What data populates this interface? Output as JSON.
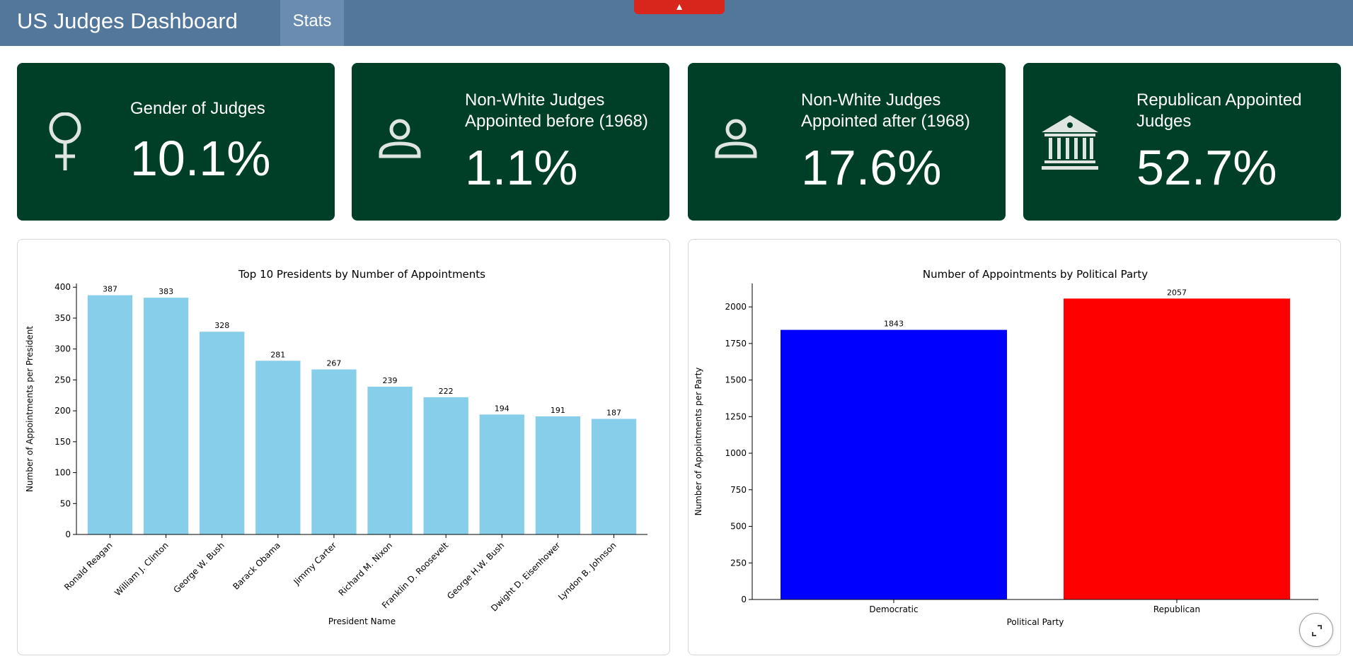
{
  "header": {
    "title": "US Judges Dashboard",
    "tab": "Stats",
    "badge_icon": "flame-icon"
  },
  "cards": [
    {
      "label": "Gender of Judges",
      "value": "10.1%",
      "icon": "female-icon"
    },
    {
      "label": "Non-White Judges Appointed before (1968)",
      "value": "1.1%",
      "icon": "person-icon"
    },
    {
      "label": "Non-White Judges Appointed after (1968)",
      "value": "17.6%",
      "icon": "person-icon"
    },
    {
      "label": "Republican Appointed Judges",
      "value": "52.7%",
      "icon": "bank-icon"
    }
  ],
  "chart_data": [
    {
      "type": "bar",
      "title": "Top 10 Presidents by Number of Appointments",
      "xlabel": "President Name",
      "ylabel": "Number of Appointments per President",
      "categories": [
        "Ronald Reagan",
        "William J. Clinton",
        "George W. Bush",
        "Barack Obama",
        "Jimmy Carter",
        "Richard M. Nixon",
        "Franklin D. Roosevelt",
        "George H.W. Bush",
        "Dwight D. Eisenhower",
        "Lyndon B. Johnson"
      ],
      "values": [
        387,
        383,
        328,
        281,
        267,
        239,
        222,
        194,
        191,
        187
      ],
      "ylim": [
        0,
        406
      ],
      "yticks": [
        0,
        50,
        100,
        150,
        200,
        250,
        300,
        350,
        400
      ],
      "color": "#87ceeb"
    },
    {
      "type": "bar",
      "title": "Number of Appointments by Political Party",
      "xlabel": "Political Party",
      "ylabel": "Number of Appointments per Party",
      "categories": [
        "Democratic",
        "Republican"
      ],
      "values": [
        1843,
        2057
      ],
      "ylim": [
        0,
        2160
      ],
      "yticks": [
        0,
        250,
        500,
        750,
        1000,
        1250,
        1500,
        1750,
        2000
      ],
      "colors": [
        "#0000ff",
        "#ff0000"
      ]
    }
  ]
}
